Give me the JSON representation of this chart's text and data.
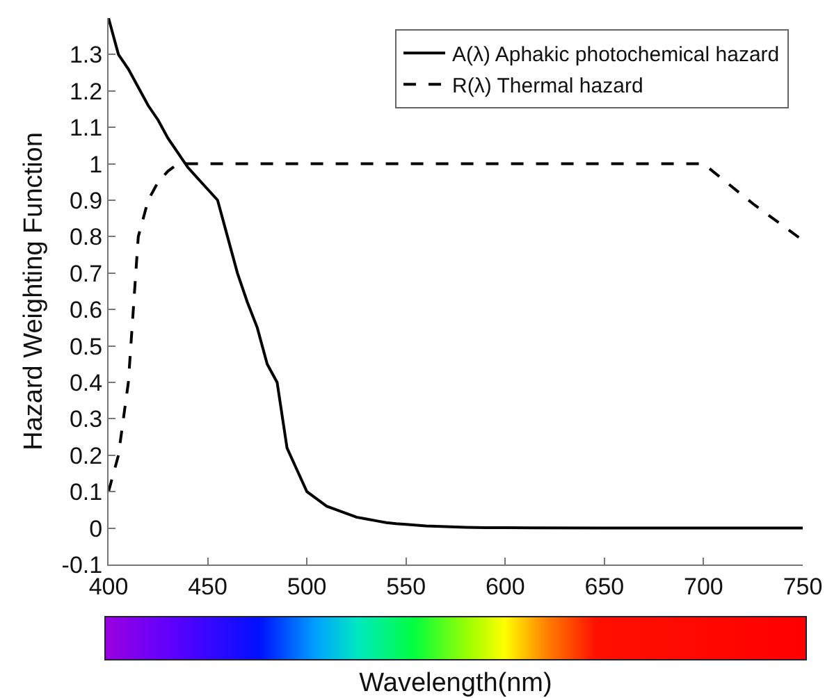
{
  "chart_data": {
    "type": "line",
    "xlabel": "Wavelength(nm)",
    "ylabel": "Hazard Weighting Function",
    "xlim": [
      400,
      750
    ],
    "xticks": [
      400,
      450,
      500,
      550,
      600,
      650,
      700,
      750
    ],
    "ylim": [
      -0.1,
      1.4
    ],
    "yticks": [
      -0.1,
      0,
      0.1,
      0.2,
      0.3,
      0.4,
      0.5,
      0.6,
      0.7,
      0.8,
      0.9,
      1,
      1.1,
      1.2,
      1.3
    ],
    "grid": false,
    "legend": "top right",
    "marker": "none",
    "series": [
      {
        "name": "A(λ) Aphakic photochemical hazard",
        "color": "#000000",
        "line_style": "solid",
        "x": [
          400,
          405,
          410,
          415,
          420,
          425,
          430,
          435,
          440,
          445,
          450,
          455,
          460,
          465,
          470,
          475,
          480,
          485,
          490,
          495,
          500,
          505,
          510,
          515,
          520,
          525,
          530,
          535,
          540,
          545,
          550,
          560,
          570,
          580,
          590,
          600,
          650,
          700,
          750
        ],
        "values": [
          1.4,
          1.3,
          1.26,
          1.21,
          1.16,
          1.12,
          1.07,
          1.03,
          0.99,
          0.96,
          0.93,
          0.9,
          0.8,
          0.7,
          0.62,
          0.55,
          0.45,
          0.4,
          0.22,
          0.16,
          0.1,
          0.08,
          0.06,
          0.05,
          0.04,
          0.03,
          0.025,
          0.02,
          0.015,
          0.012,
          0.01,
          0.006,
          0.004,
          0.002,
          0.001,
          0.001,
          0,
          0,
          0
        ]
      },
      {
        "name": "R(λ) Thermal hazard",
        "color": "#000000",
        "line_style": "dashed",
        "x": [
          400,
          405,
          410,
          415,
          420,
          425,
          430,
          435,
          440,
          500,
          600,
          700,
          725,
          750
        ],
        "values": [
          0.1,
          0.2,
          0.4,
          0.8,
          0.9,
          0.95,
          0.98,
          1,
          1,
          1,
          1,
          1,
          0.89,
          0.79
        ]
      }
    ]
  }
}
